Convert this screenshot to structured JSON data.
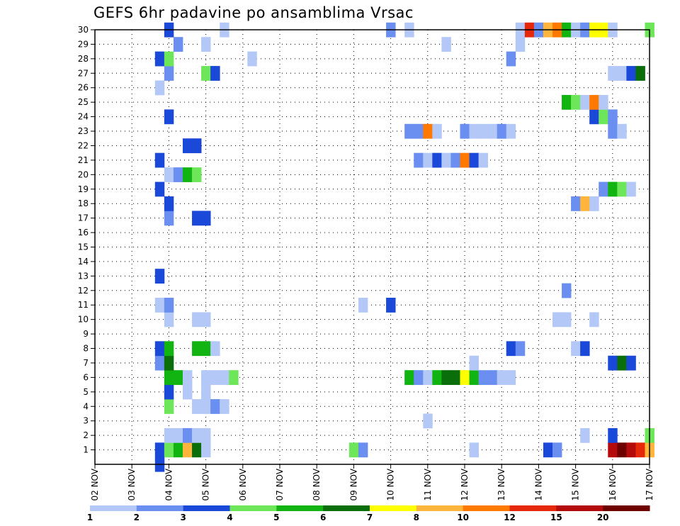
{
  "chart_data": {
    "type": "heatmap",
    "title": "GEFS 6hr padavine po ansamblima Vrsac",
    "xlabel": "",
    "ylabel": "",
    "x_tick_labels": [
      "02 NOV",
      "03 NOV",
      "04 NOV",
      "05 NOV",
      "06 NOV",
      "07 NOV",
      "08 NOV",
      "09 NOV",
      "10 NOV",
      "11 NOV",
      "12 NOV",
      "13 NOV",
      "14 NOV",
      "15 NOV",
      "16 NOV",
      "17 NOV"
    ],
    "xlim_days": [
      2,
      17
    ],
    "y_tick_labels": [
      "1",
      "2",
      "3",
      "4",
      "5",
      "6",
      "7",
      "8",
      "9",
      "10",
      "11",
      "12",
      "13",
      "14",
      "15",
      "16",
      "17",
      "18",
      "19",
      "20",
      "21",
      "22",
      "23",
      "24",
      "25",
      "26",
      "27",
      "28",
      "29",
      "30"
    ],
    "ylim_members": [
      0,
      30
    ],
    "grid": "dotted",
    "colors": [
      "#b4c8f8",
      "#6a8ff0",
      "#1a48d8",
      "#6ee65a",
      "#12b412",
      "#0a6e0a",
      "#ffff00",
      "#ffb43c",
      "#ff7800",
      "#e6280a",
      "#b40a0a",
      "#6e0000"
    ],
    "legend": {
      "position": "bottom",
      "labels": [
        "1",
        "2",
        "3",
        "4",
        "5",
        "6",
        "7",
        "8",
        "10",
        "12",
        "15",
        "20"
      ]
    },
    "cells": [
      {
        "day": 3.75,
        "member": 0,
        "cat": 2
      },
      {
        "day": 3.75,
        "member": 1,
        "cat": 2
      },
      {
        "day": 4.0,
        "member": 1,
        "cat": 3
      },
      {
        "day": 4.25,
        "member": 1,
        "cat": 4
      },
      {
        "day": 4.5,
        "member": 1,
        "cat": 7
      },
      {
        "day": 4.75,
        "member": 1,
        "cat": 5
      },
      {
        "day": 5.0,
        "member": 1,
        "cat": 0
      },
      {
        "day": 9.0,
        "member": 1,
        "cat": 3
      },
      {
        "day": 9.25,
        "member": 1,
        "cat": 1
      },
      {
        "day": 12.25,
        "member": 1,
        "cat": 0
      },
      {
        "day": 14.25,
        "member": 1,
        "cat": 2
      },
      {
        "day": 14.5,
        "member": 1,
        "cat": 1
      },
      {
        "day": 16.0,
        "member": 1,
        "cat": 10
      },
      {
        "day": 16.25,
        "member": 1,
        "cat": 11
      },
      {
        "day": 16.5,
        "member": 1,
        "cat": 10
      },
      {
        "day": 16.75,
        "member": 1,
        "cat": 9
      },
      {
        "day": 17.0,
        "member": 1,
        "cat": 7
      },
      {
        "day": 4.0,
        "member": 2,
        "cat": 0
      },
      {
        "day": 4.25,
        "member": 2,
        "cat": 0
      },
      {
        "day": 4.5,
        "member": 2,
        "cat": 1
      },
      {
        "day": 4.75,
        "member": 2,
        "cat": 0
      },
      {
        "day": 5.0,
        "member": 2,
        "cat": 0
      },
      {
        "day": 15.25,
        "member": 2,
        "cat": 0
      },
      {
        "day": 16.0,
        "member": 2,
        "cat": 2
      },
      {
        "day": 17.0,
        "member": 2,
        "cat": 3
      },
      {
        "day": 11.0,
        "member": 3,
        "cat": 0
      },
      {
        "day": 4.0,
        "member": 4,
        "cat": 3
      },
      {
        "day": 4.75,
        "member": 4,
        "cat": 0
      },
      {
        "day": 5.0,
        "member": 4,
        "cat": 0
      },
      {
        "day": 5.25,
        "member": 4,
        "cat": 1
      },
      {
        "day": 5.5,
        "member": 4,
        "cat": 0
      },
      {
        "day": 4.0,
        "member": 5,
        "cat": 2
      },
      {
        "day": 4.5,
        "member": 5,
        "cat": 0
      },
      {
        "day": 5.0,
        "member": 5,
        "cat": 0
      },
      {
        "day": 4.0,
        "member": 6,
        "cat": 4
      },
      {
        "day": 4.25,
        "member": 6,
        "cat": 4
      },
      {
        "day": 4.5,
        "member": 6,
        "cat": 0
      },
      {
        "day": 5.0,
        "member": 6,
        "cat": 0
      },
      {
        "day": 5.25,
        "member": 6,
        "cat": 0
      },
      {
        "day": 5.5,
        "member": 6,
        "cat": 0
      },
      {
        "day": 5.75,
        "member": 6,
        "cat": 3
      },
      {
        "day": 10.5,
        "member": 6,
        "cat": 4
      },
      {
        "day": 10.75,
        "member": 6,
        "cat": 1
      },
      {
        "day": 11.0,
        "member": 6,
        "cat": 0
      },
      {
        "day": 11.25,
        "member": 6,
        "cat": 4
      },
      {
        "day": 11.5,
        "member": 6,
        "cat": 5
      },
      {
        "day": 11.75,
        "member": 6,
        "cat": 5
      },
      {
        "day": 12.0,
        "member": 6,
        "cat": 6
      },
      {
        "day": 12.25,
        "member": 6,
        "cat": 4
      },
      {
        "day": 12.5,
        "member": 6,
        "cat": 1
      },
      {
        "day": 12.75,
        "member": 6,
        "cat": 1
      },
      {
        "day": 13.0,
        "member": 6,
        "cat": 0
      },
      {
        "day": 13.25,
        "member": 6,
        "cat": 0
      },
      {
        "day": 3.75,
        "member": 7,
        "cat": 1
      },
      {
        "day": 4.0,
        "member": 7,
        "cat": 5
      },
      {
        "day": 12.25,
        "member": 7,
        "cat": 0
      },
      {
        "day": 16.0,
        "member": 7,
        "cat": 2
      },
      {
        "day": 16.25,
        "member": 7,
        "cat": 5
      },
      {
        "day": 16.5,
        "member": 7,
        "cat": 2
      },
      {
        "day": 3.75,
        "member": 8,
        "cat": 2
      },
      {
        "day": 4.0,
        "member": 8,
        "cat": 4
      },
      {
        "day": 4.75,
        "member": 8,
        "cat": 4
      },
      {
        "day": 5.0,
        "member": 8,
        "cat": 4
      },
      {
        "day": 5.25,
        "member": 8,
        "cat": 0
      },
      {
        "day": 13.25,
        "member": 8,
        "cat": 2
      },
      {
        "day": 13.5,
        "member": 8,
        "cat": 1
      },
      {
        "day": 15.0,
        "member": 8,
        "cat": 0
      },
      {
        "day": 15.25,
        "member": 8,
        "cat": 2
      },
      {
        "day": 4.0,
        "member": 10,
        "cat": 0
      },
      {
        "day": 4.75,
        "member": 10,
        "cat": 0
      },
      {
        "day": 5.0,
        "member": 10,
        "cat": 0
      },
      {
        "day": 14.5,
        "member": 10,
        "cat": 0
      },
      {
        "day": 14.75,
        "member": 10,
        "cat": 0
      },
      {
        "day": 15.5,
        "member": 10,
        "cat": 0
      },
      {
        "day": 3.75,
        "member": 11,
        "cat": 0
      },
      {
        "day": 4.0,
        "member": 11,
        "cat": 1
      },
      {
        "day": 9.25,
        "member": 11,
        "cat": 0
      },
      {
        "day": 10.0,
        "member": 11,
        "cat": 2
      },
      {
        "day": 14.75,
        "member": 12,
        "cat": 1
      },
      {
        "day": 3.75,
        "member": 13,
        "cat": 2
      },
      {
        "day": 4.0,
        "member": 17,
        "cat": 1
      },
      {
        "day": 4.75,
        "member": 17,
        "cat": 2
      },
      {
        "day": 5.0,
        "member": 17,
        "cat": 2
      },
      {
        "day": 4.0,
        "member": 18,
        "cat": 2
      },
      {
        "day": 15.0,
        "member": 18,
        "cat": 1
      },
      {
        "day": 15.25,
        "member": 18,
        "cat": 7
      },
      {
        "day": 15.5,
        "member": 18,
        "cat": 0
      },
      {
        "day": 3.75,
        "member": 19,
        "cat": 2
      },
      {
        "day": 15.75,
        "member": 19,
        "cat": 1
      },
      {
        "day": 16.0,
        "member": 19,
        "cat": 4
      },
      {
        "day": 16.25,
        "member": 19,
        "cat": 3
      },
      {
        "day": 16.5,
        "member": 19,
        "cat": 0
      },
      {
        "day": 4.0,
        "member": 20,
        "cat": 0
      },
      {
        "day": 4.25,
        "member": 20,
        "cat": 1
      },
      {
        "day": 4.5,
        "member": 20,
        "cat": 4
      },
      {
        "day": 4.75,
        "member": 20,
        "cat": 3
      },
      {
        "day": 3.75,
        "member": 21,
        "cat": 2
      },
      {
        "day": 10.75,
        "member": 21,
        "cat": 1
      },
      {
        "day": 11.0,
        "member": 21,
        "cat": 0
      },
      {
        "day": 11.25,
        "member": 21,
        "cat": 2
      },
      {
        "day": 11.5,
        "member": 21,
        "cat": 0
      },
      {
        "day": 11.75,
        "member": 21,
        "cat": 1
      },
      {
        "day": 12.0,
        "member": 21,
        "cat": 8
      },
      {
        "day": 12.25,
        "member": 21,
        "cat": 2
      },
      {
        "day": 12.5,
        "member": 21,
        "cat": 0
      },
      {
        "day": 4.5,
        "member": 22,
        "cat": 2
      },
      {
        "day": 4.75,
        "member": 22,
        "cat": 2
      },
      {
        "day": 10.5,
        "member": 23,
        "cat": 1
      },
      {
        "day": 10.75,
        "member": 23,
        "cat": 1
      },
      {
        "day": 11.0,
        "member": 23,
        "cat": 8
      },
      {
        "day": 11.25,
        "member": 23,
        "cat": 0
      },
      {
        "day": 12.0,
        "member": 23,
        "cat": 1
      },
      {
        "day": 12.25,
        "member": 23,
        "cat": 0
      },
      {
        "day": 12.5,
        "member": 23,
        "cat": 0
      },
      {
        "day": 12.75,
        "member": 23,
        "cat": 0
      },
      {
        "day": 13.0,
        "member": 23,
        "cat": 1
      },
      {
        "day": 13.25,
        "member": 23,
        "cat": 0
      },
      {
        "day": 16.0,
        "member": 23,
        "cat": 1
      },
      {
        "day": 16.25,
        "member": 23,
        "cat": 0
      },
      {
        "day": 4.0,
        "member": 24,
        "cat": 2
      },
      {
        "day": 15.5,
        "member": 24,
        "cat": 2
      },
      {
        "day": 15.75,
        "member": 24,
        "cat": 3
      },
      {
        "day": 16.0,
        "member": 24,
        "cat": 1
      },
      {
        "day": 14.75,
        "member": 25,
        "cat": 4
      },
      {
        "day": 15.0,
        "member": 25,
        "cat": 3
      },
      {
        "day": 15.25,
        "member": 25,
        "cat": 0
      },
      {
        "day": 15.5,
        "member": 25,
        "cat": 8
      },
      {
        "day": 15.75,
        "member": 25,
        "cat": 0
      },
      {
        "day": 3.75,
        "member": 26,
        "cat": 0
      },
      {
        "day": 4.0,
        "member": 27,
        "cat": 1
      },
      {
        "day": 5.0,
        "member": 27,
        "cat": 3
      },
      {
        "day": 5.25,
        "member": 27,
        "cat": 2
      },
      {
        "day": 16.0,
        "member": 27,
        "cat": 0
      },
      {
        "day": 16.25,
        "member": 27,
        "cat": 0
      },
      {
        "day": 16.5,
        "member": 27,
        "cat": 2
      },
      {
        "day": 16.75,
        "member": 27,
        "cat": 5
      },
      {
        "day": 3.75,
        "member": 28,
        "cat": 2
      },
      {
        "day": 4.0,
        "member": 28,
        "cat": 3
      },
      {
        "day": 6.25,
        "member": 28,
        "cat": 0
      },
      {
        "day": 13.25,
        "member": 28,
        "cat": 1
      },
      {
        "day": 4.25,
        "member": 29,
        "cat": 1
      },
      {
        "day": 5.0,
        "member": 29,
        "cat": 0
      },
      {
        "day": 11.5,
        "member": 29,
        "cat": 0
      },
      {
        "day": 13.5,
        "member": 29,
        "cat": 0
      },
      {
        "day": 4.0,
        "member": 30,
        "cat": 2
      },
      {
        "day": 5.5,
        "member": 30,
        "cat": 0
      },
      {
        "day": 10.0,
        "member": 30,
        "cat": 1
      },
      {
        "day": 10.5,
        "member": 30,
        "cat": 0
      },
      {
        "day": 13.5,
        "member": 30,
        "cat": 0
      },
      {
        "day": 13.75,
        "member": 30,
        "cat": 9
      },
      {
        "day": 14.0,
        "member": 30,
        "cat": 1
      },
      {
        "day": 14.25,
        "member": 30,
        "cat": 7
      },
      {
        "day": 14.5,
        "member": 30,
        "cat": 8
      },
      {
        "day": 14.75,
        "member": 30,
        "cat": 4
      },
      {
        "day": 15.0,
        "member": 30,
        "cat": 0
      },
      {
        "day": 15.25,
        "member": 30,
        "cat": 1
      },
      {
        "day": 15.5,
        "member": 30,
        "cat": 6
      },
      {
        "day": 15.75,
        "member": 30,
        "cat": 6
      },
      {
        "day": 16.0,
        "member": 30,
        "cat": 0
      },
      {
        "day": 17.0,
        "member": 30,
        "cat": 3
      }
    ]
  }
}
